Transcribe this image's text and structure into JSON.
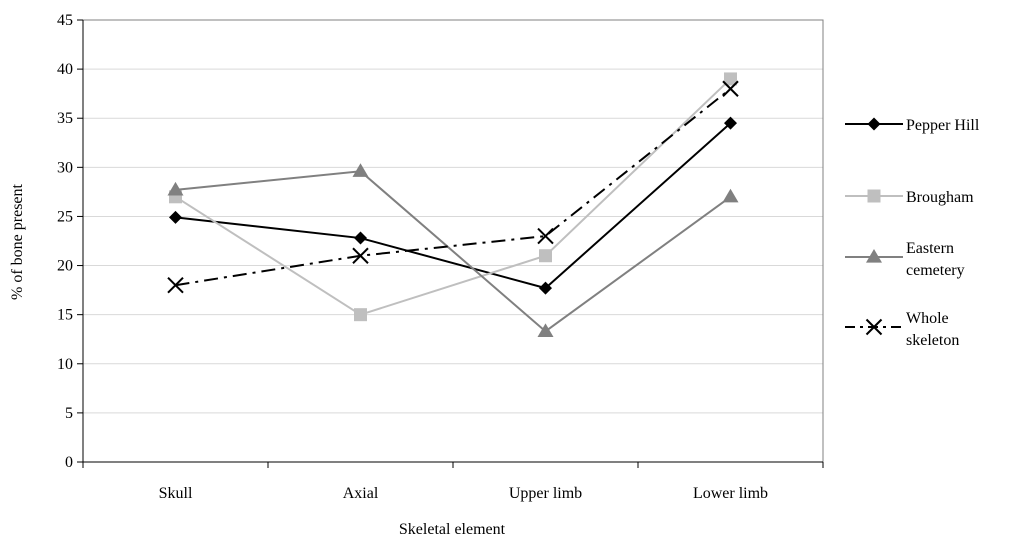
{
  "chart_data": {
    "type": "line",
    "title": "",
    "xlabel": "Skeletal element",
    "ylabel": "% of bone present",
    "categories": [
      "Skull",
      "Axial",
      "Upper limb",
      "Lower limb"
    ],
    "ylim": [
      0,
      45
    ],
    "yticks": [
      0,
      5,
      10,
      15,
      20,
      25,
      30,
      35,
      40,
      45
    ],
    "grid": true,
    "legend_position": "right",
    "series": [
      {
        "name": "Pepper Hill",
        "legend_lines": [
          "Pepper Hill"
        ],
        "values": [
          24.9,
          22.8,
          17.7,
          34.5
        ],
        "color": "#000000",
        "marker": "diamond",
        "dash": "solid"
      },
      {
        "name": "Brougham",
        "legend_lines": [
          "Brougham"
        ],
        "values": [
          27.0,
          15.0,
          21.0,
          39.0
        ],
        "color": "#bfbfbf",
        "marker": "square",
        "dash": "solid"
      },
      {
        "name": "Eastern cemetery",
        "legend_lines": [
          "Eastern",
          "cemetery"
        ],
        "values": [
          27.7,
          29.6,
          13.3,
          27.0
        ],
        "color": "#808080",
        "marker": "triangle",
        "dash": "solid"
      },
      {
        "name": "Whole skeleton",
        "legend_lines": [
          "Whole",
          "skeleton"
        ],
        "values": [
          18.0,
          21.0,
          23.0,
          38.0
        ],
        "color": "#000000",
        "marker": "x",
        "dash": "dash-dot"
      }
    ]
  }
}
